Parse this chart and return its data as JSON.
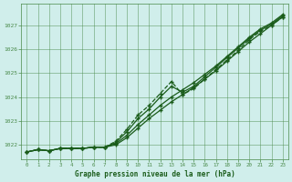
{
  "xlabel": "Graphe pression niveau de la mer (hPa)",
  "xlim": [
    -0.5,
    23.5
  ],
  "ylim": [
    1021.4,
    1027.9
  ],
  "yticks": [
    1022,
    1023,
    1024,
    1025,
    1026,
    1027
  ],
  "xticks": [
    0,
    1,
    2,
    3,
    4,
    5,
    6,
    7,
    8,
    9,
    10,
    11,
    12,
    13,
    14,
    15,
    16,
    17,
    18,
    19,
    20,
    21,
    22,
    23
  ],
  "background_color": "#d0eeeb",
  "grid_color": "#4a8a4a",
  "line_color": "#1a5c1a",
  "series1": [
    1021.7,
    1021.8,
    1021.75,
    1021.85,
    1021.85,
    1021.85,
    1021.9,
    1021.9,
    1022.0,
    1022.3,
    1022.7,
    1023.1,
    1023.45,
    1023.8,
    1024.1,
    1024.4,
    1024.75,
    1025.1,
    1025.5,
    1025.9,
    1026.3,
    1026.65,
    1027.0,
    1027.35
  ],
  "series2": [
    1021.7,
    1021.8,
    1021.75,
    1021.85,
    1021.85,
    1021.85,
    1021.9,
    1021.9,
    1022.05,
    1022.4,
    1022.85,
    1023.25,
    1023.65,
    1024.0,
    1024.3,
    1024.6,
    1024.95,
    1025.3,
    1025.7,
    1026.1,
    1026.5,
    1026.85,
    1027.1,
    1027.45
  ],
  "series3_x": [
    0,
    1,
    2,
    3,
    4,
    5,
    6,
    7,
    8,
    9,
    10,
    11,
    12,
    13,
    14,
    15,
    16,
    17,
    18,
    19,
    20,
    21,
    22,
    23
  ],
  "series3": [
    1021.7,
    1021.8,
    1021.75,
    1021.85,
    1021.85,
    1021.85,
    1021.9,
    1021.9,
    1022.1,
    1022.55,
    1023.1,
    1023.5,
    1024.0,
    1024.45,
    1024.2,
    1024.45,
    1024.85,
    1025.25,
    1025.65,
    1026.05,
    1026.45,
    1026.8,
    1027.05,
    1027.4
  ],
  "series4": [
    1021.7,
    1021.8,
    1021.75,
    1021.85,
    1021.85,
    1021.85,
    1021.9,
    1021.9,
    1022.15,
    1022.65,
    1023.25,
    1023.65,
    1024.15,
    1024.65,
    1024.1,
    1024.35,
    1024.75,
    1025.15,
    1025.55,
    1025.95,
    1026.4,
    1026.75,
    1027.0,
    1027.35
  ]
}
